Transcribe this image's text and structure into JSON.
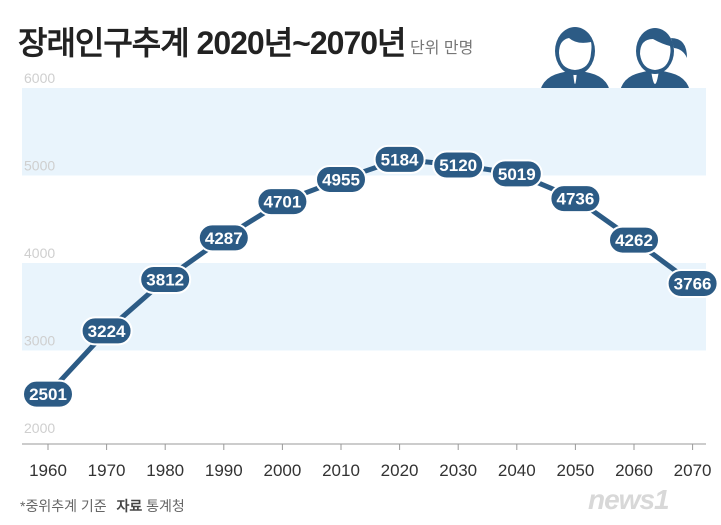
{
  "header": {
    "title": "장래인구추계 2020년~2070년",
    "unit": "단위 만명"
  },
  "footer": {
    "note": "*중위추계 기준",
    "source_label": "자료",
    "source": "통계청",
    "logo": "news1"
  },
  "icons": [
    "man-icon",
    "woman-icon"
  ],
  "colors": {
    "line": "#2c5b85",
    "label_bg": "#2c5b85",
    "band": "#e9f4fc",
    "axis_text": "#cfcfcf",
    "icon": "#2c5b85"
  },
  "chart_data": {
    "type": "line",
    "title": "장래인구추계 2020년~2070년",
    "unit": "단위 만명",
    "categories": [
      "1960",
      "1970",
      "1980",
      "1990",
      "2000",
      "2010",
      "2020",
      "2030",
      "2040",
      "2050",
      "2060",
      "2070"
    ],
    "values": [
      2501,
      3224,
      3812,
      4287,
      4701,
      4955,
      5184,
      5120,
      5019,
      4736,
      4262,
      3766
    ],
    "yticks": [
      "2000",
      "3000",
      "4000",
      "5000",
      "6000"
    ],
    "ylim": [
      2000,
      6000
    ],
    "grid": "alternating horizontal bands",
    "legend": "none"
  }
}
